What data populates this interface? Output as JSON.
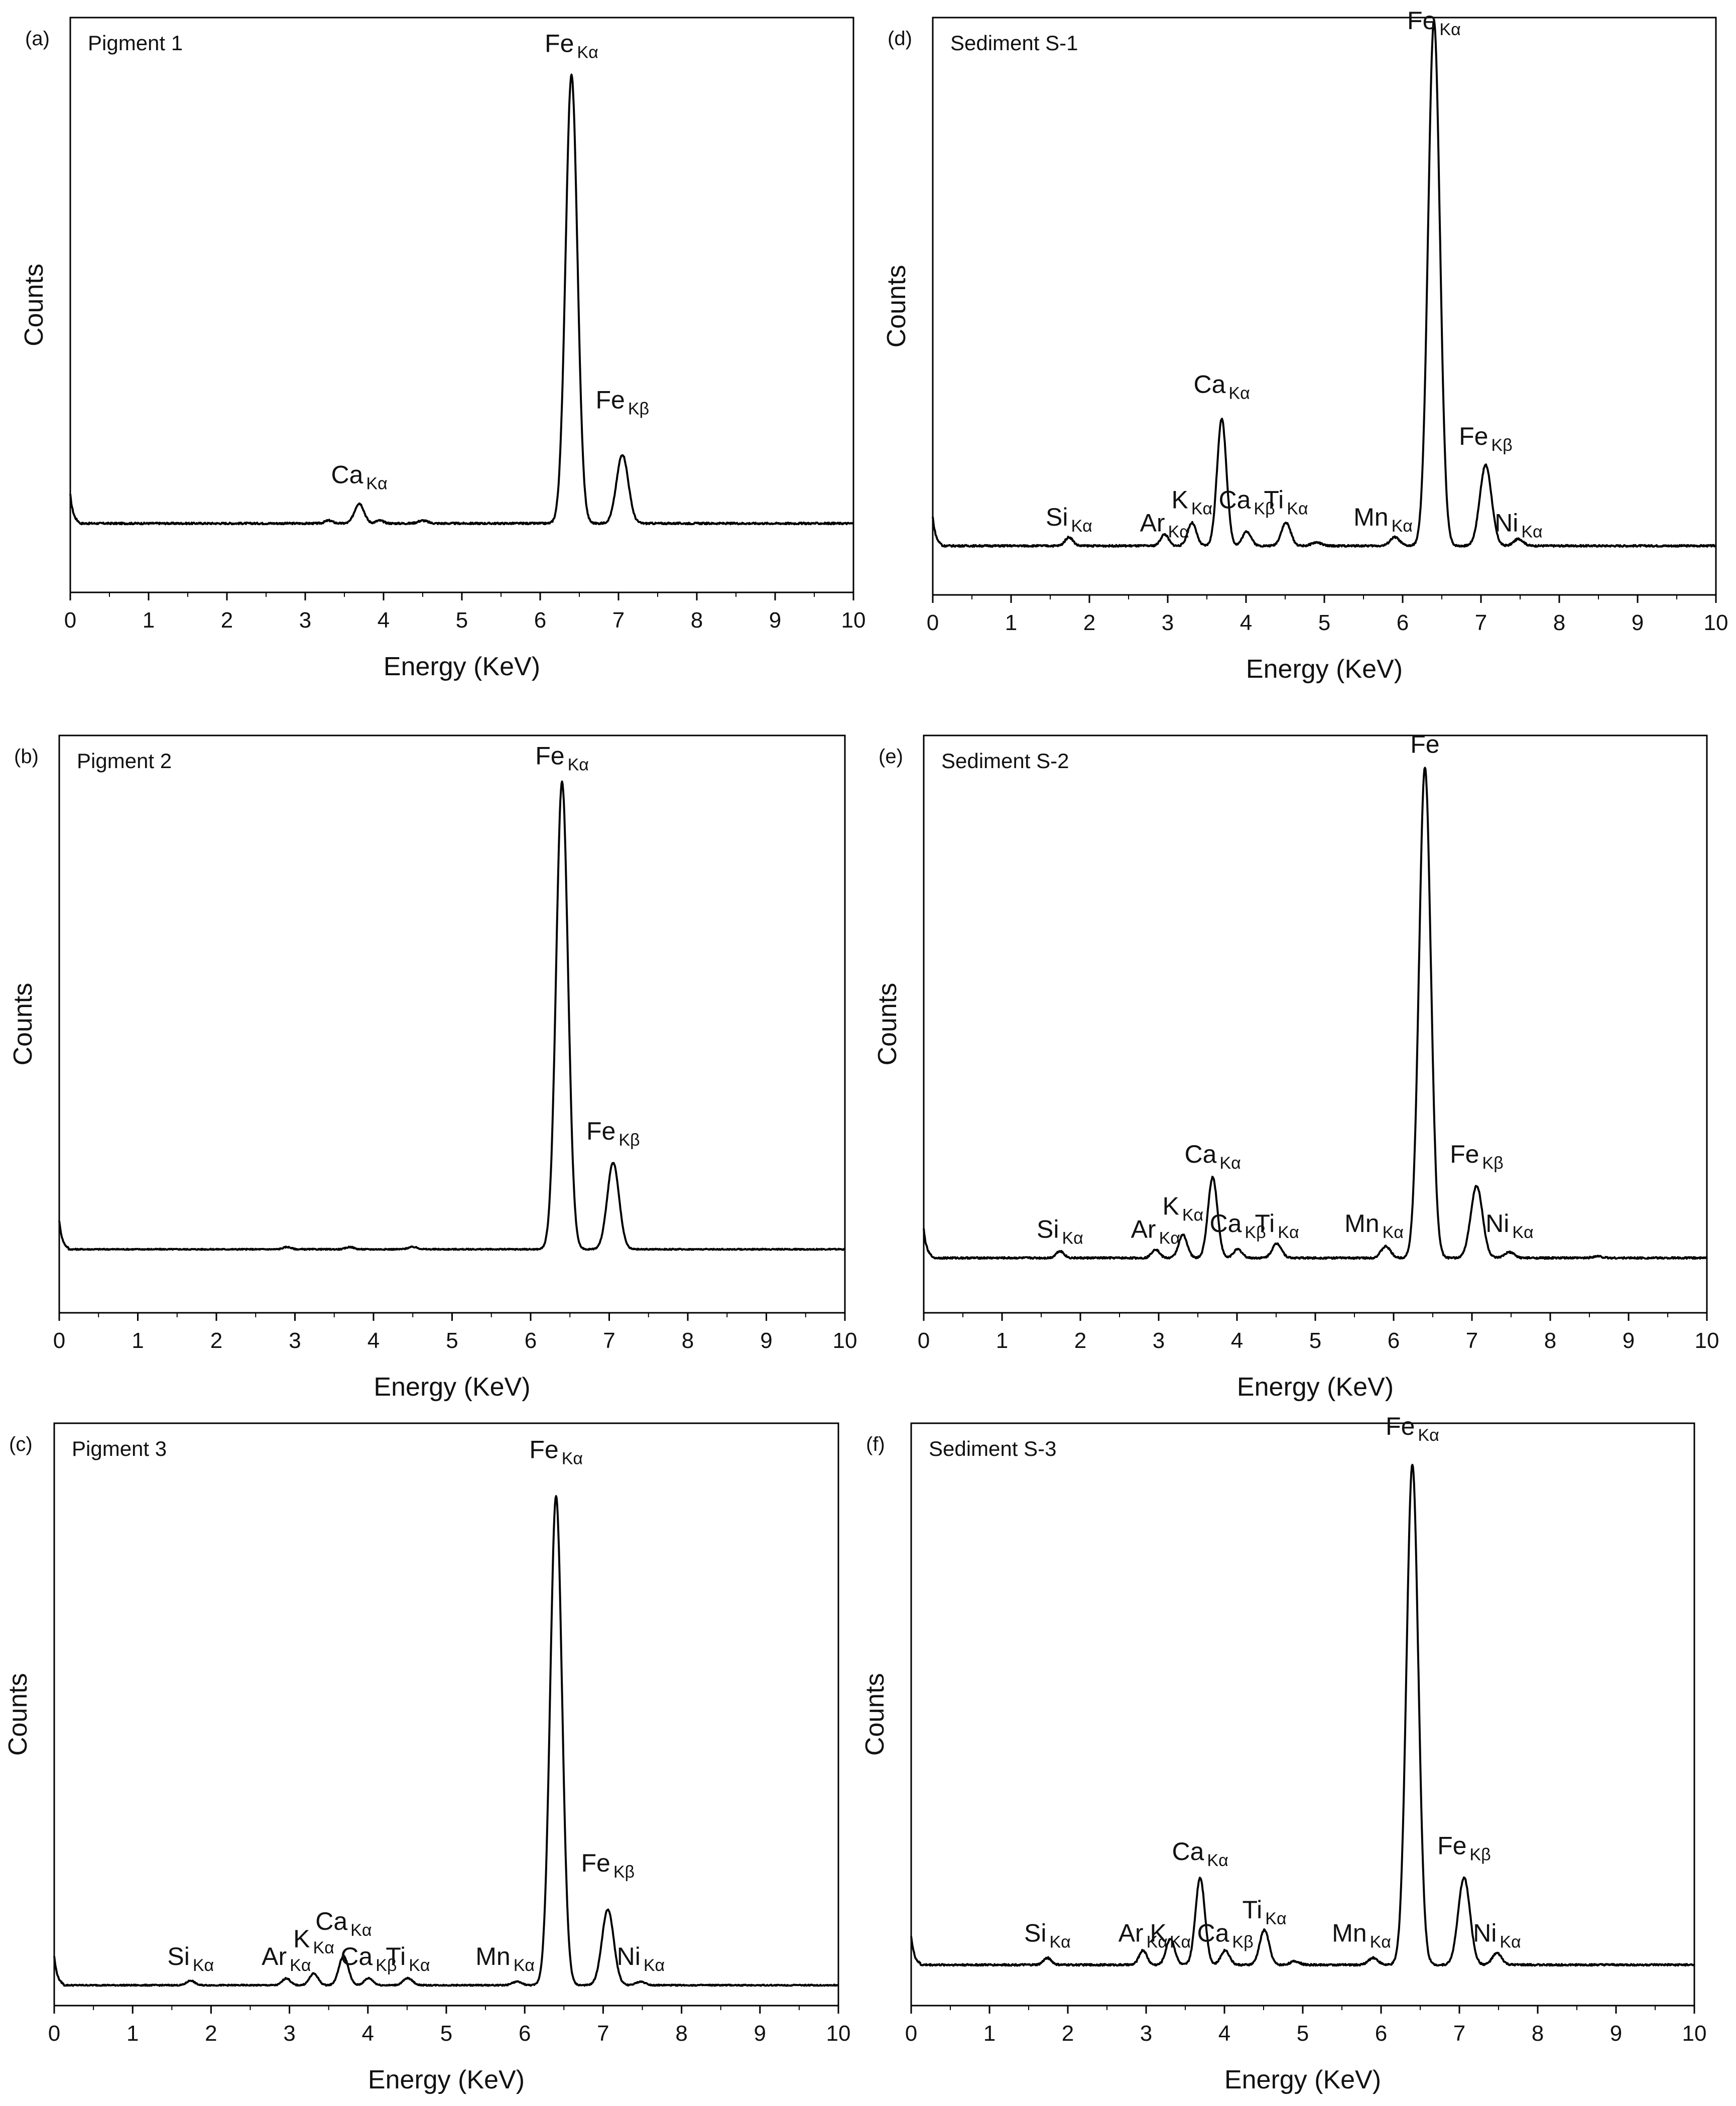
{
  "figure": {
    "line_color": "#000000",
    "background": "#ffffff"
  },
  "chart_data": [
    {
      "panel_label": "(a)",
      "title": "Pigment 1",
      "type": "line",
      "xlabel": "Energy (KeV)",
      "ylabel": "Counts",
      "xlim": [
        0,
        10
      ],
      "ylim": [
        0,
        1
      ],
      "xticks": [
        "0",
        "1",
        "2",
        "3",
        "4",
        "5",
        "6",
        "7",
        "8",
        "9",
        "10"
      ],
      "grid": false,
      "baseline": 0.12,
      "noise": 0.003,
      "peaks": [
        {
          "x": 3.3,
          "y": 0.005,
          "w": 0.05
        },
        {
          "x": 3.69,
          "y": 0.035,
          "w": 0.06
        },
        {
          "x": 3.95,
          "y": 0.005,
          "w": 0.05
        },
        {
          "x": 4.5,
          "y": 0.005,
          "w": 0.06
        },
        {
          "x": 6.4,
          "y": 0.78,
          "w": 0.075
        },
        {
          "x": 7.05,
          "y": 0.12,
          "w": 0.075
        }
      ],
      "labels": [
        {
          "el": "Ca",
          "sub": "Kα",
          "x": 3.69,
          "y": 0.19
        },
        {
          "el": "Fe",
          "sub": "Kα",
          "x": 6.4,
          "y": 0.94
        },
        {
          "el": "Fe",
          "sub": "Kβ",
          "x": 7.05,
          "y": 0.32
        }
      ]
    },
    {
      "panel_label": "(b)",
      "title": "Pigment 2",
      "type": "line",
      "xlabel": "Energy (KeV)",
      "ylabel": "Counts",
      "xlim": [
        0,
        10
      ],
      "ylim": [
        0,
        1
      ],
      "xticks": [
        "0",
        "1",
        "2",
        "3",
        "4",
        "5",
        "6",
        "7",
        "8",
        "9",
        "10"
      ],
      "grid": false,
      "baseline": 0.11,
      "noise": 0.002,
      "peaks": [
        {
          "x": 2.9,
          "y": 0.004,
          "w": 0.05
        },
        {
          "x": 3.7,
          "y": 0.004,
          "w": 0.05
        },
        {
          "x": 4.5,
          "y": 0.004,
          "w": 0.06
        },
        {
          "x": 6.4,
          "y": 0.81,
          "w": 0.075
        },
        {
          "x": 7.05,
          "y": 0.15,
          "w": 0.075
        }
      ],
      "labels": [
        {
          "el": "Fe",
          "sub": "Kα",
          "x": 6.4,
          "y": 0.95
        },
        {
          "el": "Fe",
          "sub": "Kβ",
          "x": 7.05,
          "y": 0.3
        }
      ]
    },
    {
      "panel_label": "(c)",
      "title": "Pigment 3",
      "type": "line",
      "xlabel": "Energy (KeV)",
      "ylabel": "Counts",
      "xlim": [
        0,
        10
      ],
      "ylim": [
        0,
        1
      ],
      "xticks": [
        "0",
        "1",
        "2",
        "3",
        "4",
        "5",
        "6",
        "7",
        "8",
        "9",
        "10"
      ],
      "grid": false,
      "baseline": 0.035,
      "noise": 0.002,
      "peaks": [
        {
          "x": 1.74,
          "y": 0.008,
          "w": 0.05
        },
        {
          "x": 2.96,
          "y": 0.012,
          "w": 0.05
        },
        {
          "x": 3.31,
          "y": 0.02,
          "w": 0.055
        },
        {
          "x": 3.69,
          "y": 0.05,
          "w": 0.06
        },
        {
          "x": 4.01,
          "y": 0.012,
          "w": 0.055
        },
        {
          "x": 4.51,
          "y": 0.012,
          "w": 0.06
        },
        {
          "x": 5.9,
          "y": 0.006,
          "w": 0.06
        },
        {
          "x": 6.4,
          "y": 0.84,
          "w": 0.075
        },
        {
          "x": 7.06,
          "y": 0.13,
          "w": 0.075
        },
        {
          "x": 7.48,
          "y": 0.006,
          "w": 0.06
        }
      ],
      "labels": [
        {
          "el": "Si",
          "sub": "Kα",
          "x": 1.74,
          "y": 0.07
        },
        {
          "el": "Ar",
          "sub": "Kα",
          "x": 2.96,
          "y": 0.07
        },
        {
          "el": "K",
          "sub": "Kα",
          "x": 3.31,
          "y": 0.1
        },
        {
          "el": "Ca",
          "sub": "Kα",
          "x": 3.69,
          "y": 0.13
        },
        {
          "el": "Ca",
          "sub": "Kβ",
          "x": 4.01,
          "y": 0.07
        },
        {
          "el": "Ti",
          "sub": "Kα",
          "x": 4.51,
          "y": 0.07
        },
        {
          "el": "Mn",
          "sub": "Kα",
          "x": 5.75,
          "y": 0.07
        },
        {
          "el": "Fe",
          "sub": "Kα",
          "x": 6.4,
          "y": 0.94
        },
        {
          "el": "Fe",
          "sub": "Kβ",
          "x": 7.06,
          "y": 0.23
        },
        {
          "el": "Ni",
          "sub": "Kα",
          "x": 7.48,
          "y": 0.07
        }
      ]
    },
    {
      "panel_label": "(d)",
      "title": "Sediment S-1",
      "type": "line",
      "xlabel": "Energy (KeV)",
      "ylabel": "Counts",
      "xlim": [
        0,
        10
      ],
      "ylim": [
        0,
        1
      ],
      "xticks": [
        "0",
        "1",
        "2",
        "3",
        "4",
        "5",
        "6",
        "7",
        "8",
        "9",
        "10"
      ],
      "grid": false,
      "baseline": 0.085,
      "noise": 0.003,
      "peaks": [
        {
          "x": 1.74,
          "y": 0.015,
          "w": 0.05
        },
        {
          "x": 2.96,
          "y": 0.02,
          "w": 0.05
        },
        {
          "x": 3.31,
          "y": 0.04,
          "w": 0.055
        },
        {
          "x": 3.69,
          "y": 0.22,
          "w": 0.06
        },
        {
          "x": 4.01,
          "y": 0.025,
          "w": 0.055
        },
        {
          "x": 4.51,
          "y": 0.04,
          "w": 0.06
        },
        {
          "x": 4.9,
          "y": 0.006,
          "w": 0.06
        },
        {
          "x": 5.9,
          "y": 0.015,
          "w": 0.06
        },
        {
          "x": 6.4,
          "y": 0.91,
          "w": 0.075
        },
        {
          "x": 7.06,
          "y": 0.14,
          "w": 0.075
        },
        {
          "x": 7.48,
          "y": 0.012,
          "w": 0.06
        }
      ],
      "labels": [
        {
          "el": "Si",
          "sub": "Kα",
          "x": 1.74,
          "y": 0.12
        },
        {
          "el": "Ar",
          "sub": "Kα",
          "x": 2.96,
          "y": 0.11
        },
        {
          "el": "K",
          "sub": "Kα",
          "x": 3.31,
          "y": 0.15
        },
        {
          "el": "Ca",
          "sub": "Kα",
          "x": 3.69,
          "y": 0.35
        },
        {
          "el": "Ca",
          "sub": "Kβ",
          "x": 4.01,
          "y": 0.15
        },
        {
          "el": "Ti",
          "sub": "Kα",
          "x": 4.51,
          "y": 0.15
        },
        {
          "el": "Mn",
          "sub": "Kα",
          "x": 5.75,
          "y": 0.12
        },
        {
          "el": "Fe",
          "sub": "Kα",
          "x": 6.4,
          "y": 0.98
        },
        {
          "el": "Fe",
          "sub": "Kβ",
          "x": 7.06,
          "y": 0.26
        },
        {
          "el": "Ni",
          "sub": "Kα",
          "x": 7.48,
          "y": 0.11
        }
      ]
    },
    {
      "panel_label": "(e)",
      "title": "Sediment S-2",
      "type": "line",
      "xlabel": "Energy (KeV)",
      "ylabel": "Counts",
      "xlim": [
        0,
        10
      ],
      "ylim": [
        0,
        1
      ],
      "xticks": [
        "0",
        "1",
        "2",
        "3",
        "4",
        "5",
        "6",
        "7",
        "8",
        "9",
        "10"
      ],
      "grid": false,
      "baseline": 0.095,
      "noise": 0.003,
      "peaks": [
        {
          "x": 1.74,
          "y": 0.012,
          "w": 0.05
        },
        {
          "x": 2.96,
          "y": 0.015,
          "w": 0.05
        },
        {
          "x": 3.31,
          "y": 0.04,
          "w": 0.055
        },
        {
          "x": 3.69,
          "y": 0.14,
          "w": 0.06
        },
        {
          "x": 4.01,
          "y": 0.015,
          "w": 0.055
        },
        {
          "x": 4.51,
          "y": 0.025,
          "w": 0.06
        },
        {
          "x": 5.9,
          "y": 0.02,
          "w": 0.06
        },
        {
          "x": 6.4,
          "y": 0.85,
          "w": 0.075
        },
        {
          "x": 7.06,
          "y": 0.125,
          "w": 0.075
        },
        {
          "x": 7.48,
          "y": 0.01,
          "w": 0.06
        },
        {
          "x": 8.6,
          "y": 0.003,
          "w": 0.06
        }
      ],
      "labels": [
        {
          "el": "Si",
          "sub": "Kα",
          "x": 1.74,
          "y": 0.13
        },
        {
          "el": "Ar",
          "sub": "Kα",
          "x": 2.96,
          "y": 0.13
        },
        {
          "el": "K",
          "sub": "Kα",
          "x": 3.31,
          "y": 0.17
        },
        {
          "el": "Ca",
          "sub": "Kα",
          "x": 3.69,
          "y": 0.26
        },
        {
          "el": "Ca",
          "sub": "Kβ",
          "x": 4.01,
          "y": 0.14
        },
        {
          "el": "Ti",
          "sub": "Kα",
          "x": 4.51,
          "y": 0.14
        },
        {
          "el": "Mn",
          "sub": "Kα",
          "x": 5.75,
          "y": 0.14
        },
        {
          "el": "Fe",
          "sub": "",
          "x": 6.4,
          "y": 0.97
        },
        {
          "el": "Fe",
          "sub": "Kβ",
          "x": 7.06,
          "y": 0.26
        },
        {
          "el": "Ni",
          "sub": "Kα",
          "x": 7.48,
          "y": 0.14
        }
      ]
    },
    {
      "panel_label": "(f)",
      "title": "Sediment S-3",
      "type": "line",
      "xlabel": "Energy (KeV)",
      "ylabel": "Counts",
      "xlim": [
        0,
        10
      ],
      "ylim": [
        0,
        1
      ],
      "xticks": [
        "0",
        "1",
        "2",
        "3",
        "4",
        "5",
        "6",
        "7",
        "8",
        "9",
        "10"
      ],
      "grid": false,
      "baseline": 0.07,
      "noise": 0.003,
      "peaks": [
        {
          "x": 1.74,
          "y": 0.012,
          "w": 0.05
        },
        {
          "x": 2.96,
          "y": 0.025,
          "w": 0.05
        },
        {
          "x": 3.31,
          "y": 0.045,
          "w": 0.055
        },
        {
          "x": 3.69,
          "y": 0.15,
          "w": 0.06
        },
        {
          "x": 4.01,
          "y": 0.025,
          "w": 0.055
        },
        {
          "x": 4.51,
          "y": 0.06,
          "w": 0.06
        },
        {
          "x": 4.9,
          "y": 0.006,
          "w": 0.06
        },
        {
          "x": 5.9,
          "y": 0.012,
          "w": 0.06
        },
        {
          "x": 6.4,
          "y": 0.86,
          "w": 0.075
        },
        {
          "x": 7.06,
          "y": 0.15,
          "w": 0.075
        },
        {
          "x": 7.48,
          "y": 0.02,
          "w": 0.06
        }
      ],
      "labels": [
        {
          "el": "Si",
          "sub": "Kα",
          "x": 1.74,
          "y": 0.11
        },
        {
          "el": "Ar",
          "sub": "Kα",
          "x": 2.96,
          "y": 0.11
        },
        {
          "el": "K",
          "sub": "Kα",
          "x": 3.31,
          "y": 0.11
        },
        {
          "el": "Ca",
          "sub": "Kα",
          "x": 3.69,
          "y": 0.25
        },
        {
          "el": "Ca",
          "sub": "Kβ",
          "x": 4.01,
          "y": 0.11
        },
        {
          "el": "Ti",
          "sub": "Kα",
          "x": 4.51,
          "y": 0.15
        },
        {
          "el": "Mn",
          "sub": "Kα",
          "x": 5.75,
          "y": 0.11
        },
        {
          "el": "Fe",
          "sub": "Kα",
          "x": 6.4,
          "y": 0.98
        },
        {
          "el": "Fe",
          "sub": "Kβ",
          "x": 7.06,
          "y": 0.26
        },
        {
          "el": "Ni",
          "sub": "Kα",
          "x": 7.48,
          "y": 0.11
        }
      ]
    }
  ]
}
